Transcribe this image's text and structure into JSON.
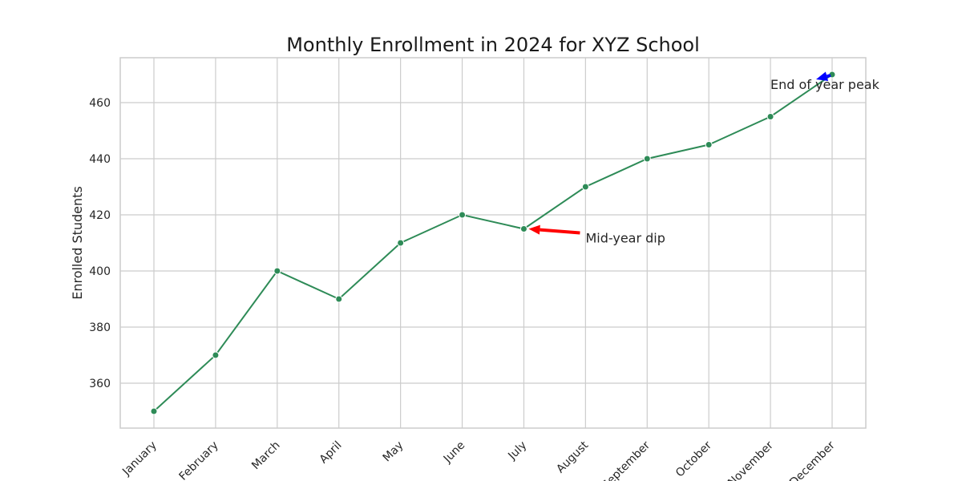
{
  "chart_data": {
    "type": "line",
    "title": "Monthly Enrollment in 2024 for XYZ School",
    "xlabel": "",
    "ylabel": "Enrolled Students",
    "categories": [
      "January",
      "February",
      "March",
      "April",
      "May",
      "June",
      "July",
      "August",
      "September",
      "October",
      "November",
      "December"
    ],
    "series": [
      {
        "values": [
          350,
          370,
          400,
          390,
          410,
          420,
          415,
          430,
          440,
          445,
          455,
          470
        ]
      }
    ],
    "ylim": [
      344,
      476
    ],
    "yticks": [
      360,
      380,
      400,
      420,
      440,
      460
    ],
    "grid": true,
    "line_color": "#2e8b57",
    "annotations": [
      {
        "text": "Mid-year dip",
        "target_category": "July",
        "target_value": 415,
        "arrow_color": "#ff0000"
      },
      {
        "text": "End of year peak",
        "target_category": "December",
        "target_value": 470,
        "arrow_color": "#0000ff"
      }
    ]
  }
}
